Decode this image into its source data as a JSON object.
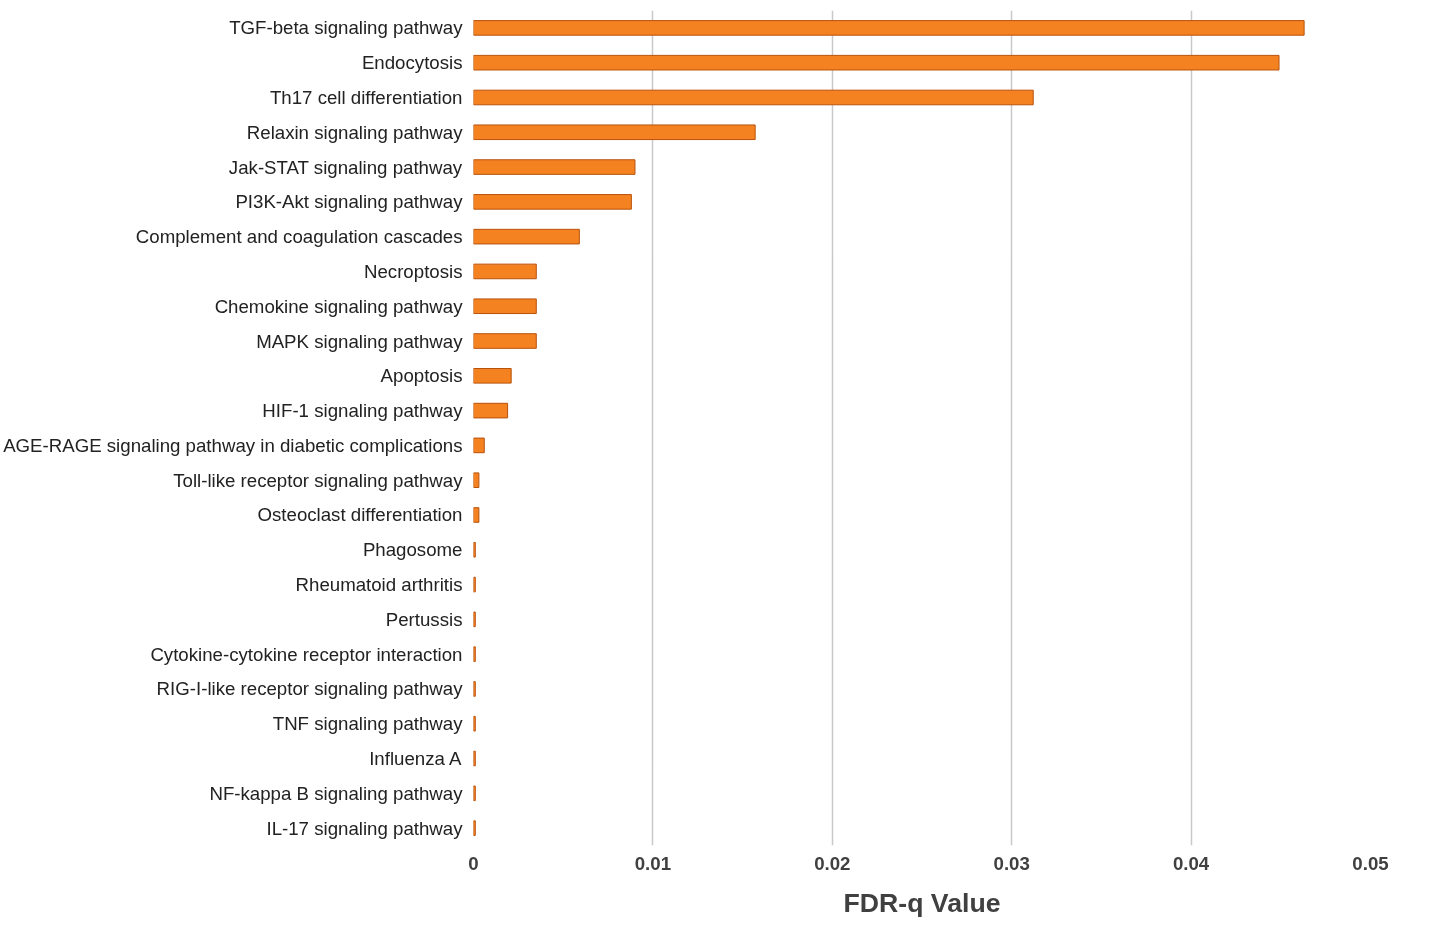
{
  "chart_data": {
    "type": "bar",
    "orientation": "horizontal",
    "xlabel": "FDR-q Value",
    "categories": [
      "TGF-beta signaling pathway",
      "Endocytosis",
      "Th17 cell differentiation",
      "Relaxin signaling pathway",
      "Jak-STAT signaling pathway",
      "PI3K-Akt signaling pathway",
      "Complement and coagulation cascades",
      "Necroptosis",
      "Chemokine signaling pathway",
      "MAPK signaling pathway",
      "Apoptosis",
      "HIF-1 signaling pathway",
      "AGE-RAGE signaling pathway in diabetic complications",
      "Toll-like receptor signaling pathway",
      "Osteoclast differentiation",
      "Phagosome",
      "Rheumatoid arthritis",
      "Pertussis",
      "Cytokine-cytokine receptor interaction",
      "RIG-I-like receptor signaling pathway",
      "TNF signaling pathway",
      "Influenza A",
      "NF-kappa B signaling pathway",
      "IL-17 signaling pathway"
    ],
    "values": [
      0.0463,
      0.0449,
      0.0312,
      0.0157,
      0.009,
      0.0088,
      0.0059,
      0.0035,
      0.0035,
      0.0035,
      0.0021,
      0.0019,
      0.0006,
      0.0003,
      0.0003,
      0.0001,
      0.0001,
      0.0001,
      0.0001,
      0.0001,
      0.0001,
      0.0001,
      0.0001,
      0.0001
    ],
    "color": "#f58220",
    "xlim": [
      0,
      0.05
    ],
    "xticks": [
      0,
      0.01,
      0.02,
      0.03,
      0.04,
      0.05
    ],
    "grid": "x"
  }
}
